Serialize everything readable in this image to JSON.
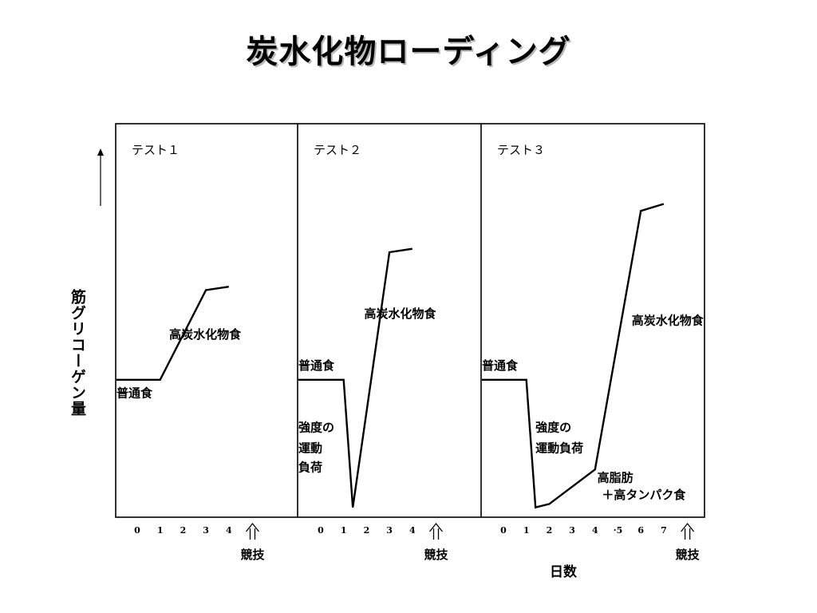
{
  "title": "炭水化物ローディング",
  "chart_data": {
    "type": "line",
    "ylabel": "筋グリコーゲン量",
    "xlabel": "日数",
    "panels": [
      {
        "title": "テスト１",
        "x_ticks": [
          "0",
          "1",
          "2",
          "3",
          "4"
        ],
        "event_label": "競技",
        "series": [
          {
            "x": [
              -1,
              0,
              1,
              3,
              4
            ],
            "y": [
              38,
              38,
              38,
              64,
              65
            ]
          }
        ],
        "annotations": [
          {
            "text": "普通食",
            "x": -0.6,
            "y": 33
          },
          {
            "text": "高炭水化物食",
            "x": 1.4,
            "y": 50
          }
        ]
      },
      {
        "title": "テスト２",
        "x_ticks": [
          "0",
          "1",
          "2",
          "3",
          "4"
        ],
        "event_label": "競技",
        "series": [
          {
            "x": [
              -1,
              0,
              1,
              1.4,
              3,
              4
            ],
            "y": [
              38,
              38,
              38,
              1,
              75,
              76
            ]
          }
        ],
        "annotations": [
          {
            "text": "普通食",
            "x": -1,
            "y": 41
          },
          {
            "text": "強度の",
            "x": -1,
            "y": 23
          },
          {
            "text": "運動",
            "x": -0.6,
            "y": 17
          },
          {
            "text": "負荷",
            "x": -0.4,
            "y": 11.5
          },
          {
            "text": "高炭水化物食",
            "x": 1.9,
            "y": 56
          }
        ]
      },
      {
        "title": "テスト３",
        "x_ticks": [
          "0",
          "1",
          "2",
          "3",
          "4",
          "·5",
          "6",
          "7"
        ],
        "event_label": "競技",
        "series": [
          {
            "x": [
              -1,
              0,
              1,
              1.4,
              2,
              4,
              6,
              7
            ],
            "y": [
              38,
              38,
              38,
              1,
              2,
              12,
              87,
              89
            ]
          }
        ],
        "annotations": [
          {
            "text": "普通食",
            "x": -1,
            "y": 41
          },
          {
            "text": "強度の",
            "x": 1.4,
            "y": 23
          },
          {
            "text": "運動負荷",
            "x": 1.4,
            "y": 17
          },
          {
            "text": "高脂肪",
            "x": 4.1,
            "y": 8.5
          },
          {
            "text": "＋高タンパク食",
            "x": 4.3,
            "y": 3.5
          },
          {
            "text": "高炭水化物食",
            "x": 5.6,
            "y": 54
          }
        ]
      }
    ]
  }
}
